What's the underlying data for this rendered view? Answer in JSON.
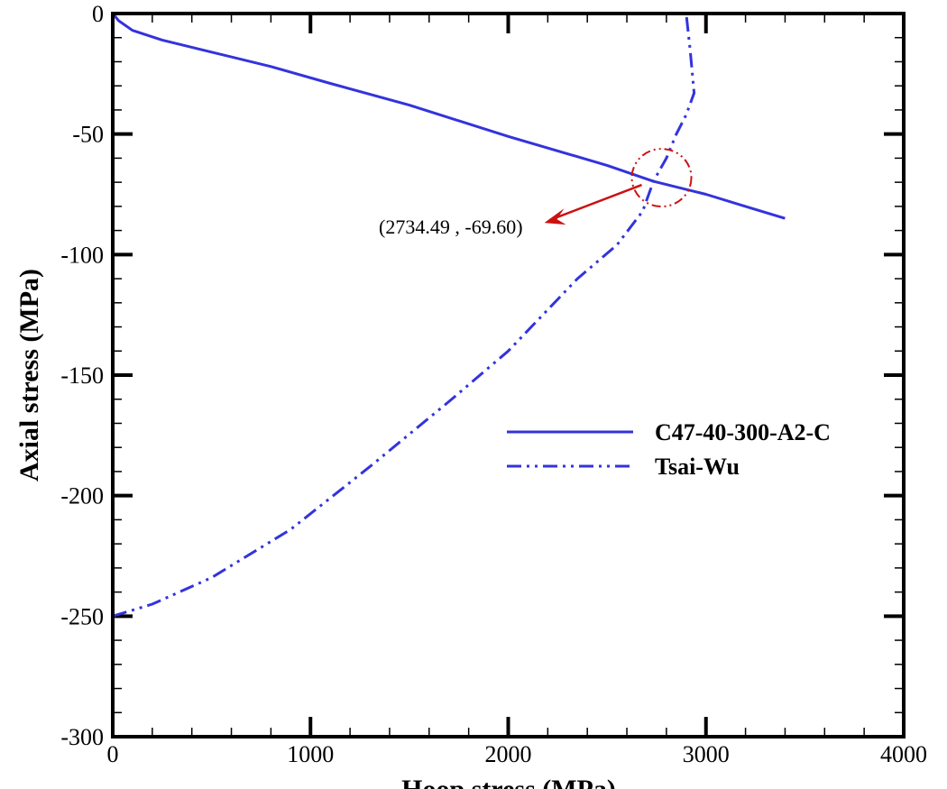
{
  "chart_data": {
    "type": "line",
    "title": "",
    "xlabel": "Hoop stress (MPa)",
    "ylabel": "Axial stress (MPa)",
    "xlim": [
      0,
      4000
    ],
    "ylim": [
      -300,
      0
    ],
    "xticks": [
      0,
      1000,
      2000,
      3000,
      4000
    ],
    "yticks": [
      0,
      -50,
      -100,
      -150,
      -200,
      -250,
      -300
    ],
    "x_tick_labels": [
      "0",
      "1000",
      "2000",
      "3000",
      "4000"
    ],
    "y_tick_labels": [
      "0",
      "-50",
      "-100",
      "-150",
      "-200",
      "-250",
      "-300"
    ],
    "x_minor_step": 200,
    "y_minor_step": 10,
    "grid": false,
    "legend_position": "center-right",
    "colors": {
      "series": "#3333dd",
      "annotation": "#cc1111",
      "axis": "#000000"
    },
    "series": [
      {
        "name": "C47-40-300-A2-C",
        "style": "solid",
        "x": [
          0,
          30,
          100,
          250,
          500,
          800,
          1100,
          1500,
          2000,
          2500,
          2734.49,
          3000,
          3200,
          3400
        ],
        "y": [
          0,
          -3,
          -7,
          -11,
          -16,
          -22,
          -29,
          -38,
          -51,
          -63,
          -69.6,
          -75,
          -80,
          -85
        ]
      },
      {
        "name": "Tsai-Wu",
        "style": "dash-dot-dot",
        "x": [
          0,
          200,
          500,
          900,
          1300,
          1700,
          2000,
          2350,
          2550,
          2680,
          2734.49,
          2800,
          2850,
          2900,
          2940,
          2920,
          2900
        ],
        "y": [
          -250,
          -245,
          -234,
          -214,
          -188,
          -161,
          -140,
          -110,
          -96,
          -82,
          -69.6,
          -60,
          -50,
          -42,
          -33,
          -15,
          0
        ]
      }
    ],
    "annotations": [
      {
        "text": "(2734.49 , -69.60)",
        "x": 2734.49,
        "y": -69.6,
        "marker": "dash-dot-circle"
      }
    ]
  }
}
